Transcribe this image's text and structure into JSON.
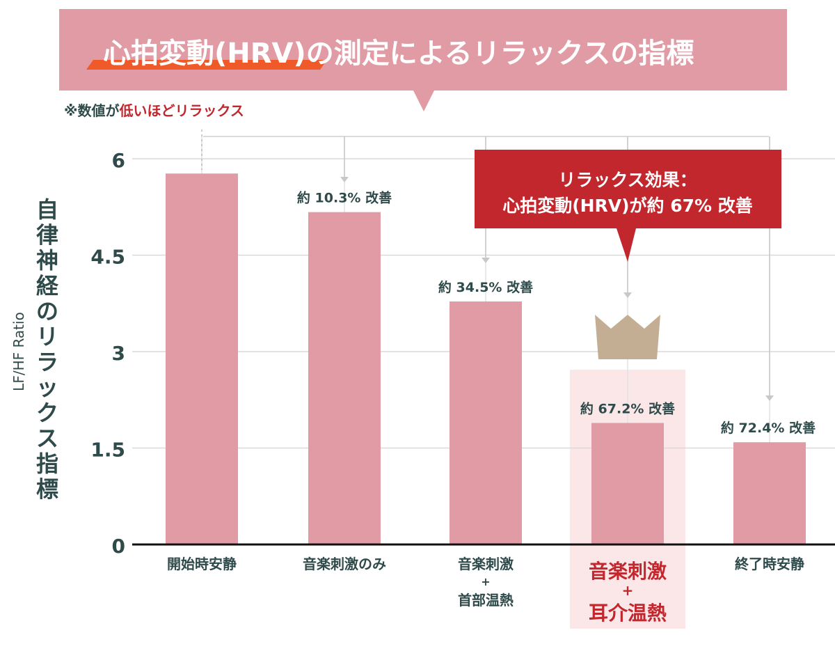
{
  "chart_data": {
    "type": "bar",
    "title": "心拍変動(HRV)の測定によるリラックスの指標",
    "note_prefix": "※数値が",
    "note_highlight": "低いほどリラックス",
    "ylabel_en": "LF/HF Ratio",
    "ylabel": "自律神経のリラックス指標",
    "ylim": [
      0,
      6
    ],
    "yticks": [
      0,
      1.5,
      3,
      4.5,
      6
    ],
    "ytick_labels": [
      "0",
      "1.5",
      "3",
      "4.5",
      "6"
    ],
    "grid": true,
    "categories": [
      [
        "開始時安静"
      ],
      [
        "音楽刺激のみ"
      ],
      [
        "音楽刺激",
        "+",
        "首部温熱"
      ],
      [
        "音楽刺激",
        "+",
        "耳介温熱"
      ],
      [
        "終了時安静"
      ]
    ],
    "values": [
      5.77,
      5.17,
      3.78,
      1.89,
      1.59
    ],
    "data_labels": [
      "",
      "約 10.3% 改善",
      "約 34.5% 改善",
      "約 67.2% 改善",
      "約 72.4% 改善"
    ],
    "highlight_index": 3,
    "callout": {
      "line1": "リラックス効果：",
      "line2": "心拍変動(HRV)が約 67% 改善"
    },
    "colors": {
      "bar": "#e09ba4",
      "title_band": "#e09ba4",
      "underline": "#f05a28",
      "callout": "#c1272d",
      "highlight_bg": "#fbe6e8",
      "crown": "#c4ae93",
      "text_dark": "#2f4a4a",
      "text_red": "#c1272d"
    }
  }
}
